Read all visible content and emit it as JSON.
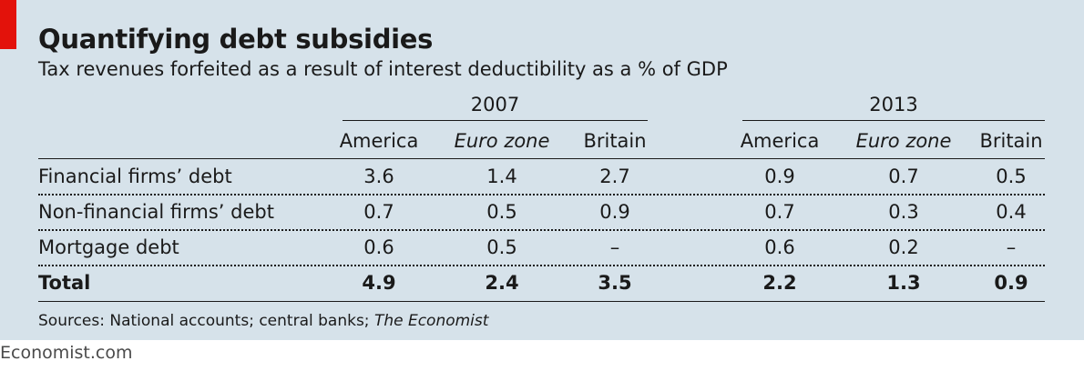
{
  "chart_data": {
    "type": "table",
    "title": "Quantifying debt subsidies",
    "subtitle": "Tax revenues forfeited as a result of interest deductibility as a % of GDP",
    "years": [
      "2007",
      "2013"
    ],
    "columns": [
      "America",
      "Euro zone",
      "Britain"
    ],
    "rows": [
      {
        "label": "Financial firms’ debt",
        "values_2007": [
          "3.6",
          "1.4",
          "2.7"
        ],
        "values_2013": [
          "0.9",
          "0.7",
          "0.5"
        ]
      },
      {
        "label": "Non-financial firms’ debt",
        "values_2007": [
          "0.7",
          "0.5",
          "0.9"
        ],
        "values_2013": [
          "0.7",
          "0.3",
          "0.4"
        ]
      },
      {
        "label": "Mortgage debt",
        "values_2007": [
          "0.6",
          "0.5",
          "–"
        ],
        "values_2013": [
          "0.6",
          "0.2",
          "–"
        ]
      },
      {
        "label": "Total",
        "values_2007": [
          "4.9",
          "2.4",
          "3.5"
        ],
        "values_2013": [
          "2.2",
          "1.3",
          "0.9"
        ]
      }
    ]
  },
  "source": {
    "prefix": "Sources: National accounts; central banks; ",
    "italic": "The Economist"
  },
  "footer": "Economist.com",
  "colors": {
    "background": "#d6e2ea",
    "accent": "#e3120b",
    "text": "#1a1a1a"
  }
}
